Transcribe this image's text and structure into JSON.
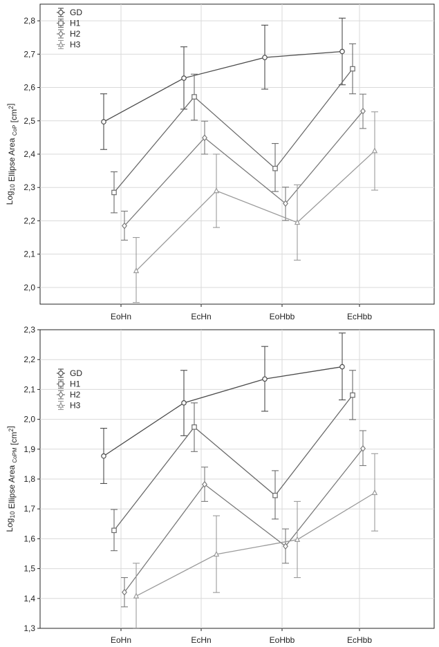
{
  "chart_data": [
    {
      "type": "line",
      "title": "",
      "ylabel": "Log10 Ellipse Area CoP [cm2]",
      "ylabel_parts": {
        "prefix": "Log",
        "log_sub": "10",
        "main": " Ellipse Area ",
        "sub": "CoP",
        "unit": " [cm",
        "unit_sup": "2",
        "close": "]"
      },
      "categories": [
        "EoHn",
        "EcHn",
        "EoHbb",
        "EcHbb"
      ],
      "ylim": [
        1.95,
        2.85
      ],
      "yticks": [
        2.0,
        2.1,
        2.2,
        2.3,
        2.4,
        2.5,
        2.6,
        2.7,
        2.8
      ],
      "ytick_labels": [
        "2,0",
        "2,1",
        "2,2",
        "2,3",
        "2,4",
        "2,5",
        "2,6",
        "2,7",
        "2,8"
      ],
      "grid": true,
      "legend_position": "top-left",
      "series": [
        {
          "name": "GD",
          "marker": "circle",
          "color": "#4a4a4a",
          "values": [
            2.497,
            2.628,
            2.69,
            2.708
          ],
          "lower": [
            2.414,
            2.535,
            2.595,
            2.608
          ],
          "upper": [
            2.581,
            2.722,
            2.787,
            2.808
          ]
        },
        {
          "name": "H1",
          "marker": "square",
          "color": "#6a6a6a",
          "values": [
            2.285,
            2.572,
            2.357,
            2.656
          ],
          "lower": [
            2.224,
            2.502,
            2.288,
            2.581
          ],
          "upper": [
            2.347,
            2.64,
            2.432,
            2.731
          ]
        },
        {
          "name": "H2",
          "marker": "diamond",
          "color": "#7a7a7a",
          "values": [
            2.185,
            2.449,
            2.252,
            2.529
          ],
          "lower": [
            2.142,
            2.4,
            2.201,
            2.477
          ],
          "upper": [
            2.229,
            2.499,
            2.301,
            2.58
          ]
        },
        {
          "name": "H3",
          "marker": "triangle",
          "color": "#9a9a9a",
          "values": [
            2.05,
            2.29,
            2.195,
            2.41
          ],
          "lower": [
            1.955,
            2.18,
            2.082,
            2.292
          ],
          "upper": [
            2.15,
            2.4,
            2.308,
            2.527
          ]
        }
      ]
    },
    {
      "type": "line",
      "title": "",
      "ylabel": "Log10 Ellipse Area CoPM [cm2]",
      "ylabel_parts": {
        "prefix": "Log",
        "log_sub": "10",
        "main": " Ellipse Area ",
        "sub": "CoPM",
        "unit": " [cm",
        "unit_sup": "2",
        "close": "]"
      },
      "categories": [
        "EoHn",
        "EcHn",
        "EoHbb",
        "EcHbb"
      ],
      "ylim": [
        1.3,
        2.3
      ],
      "yticks": [
        1.3,
        1.4,
        1.5,
        1.6,
        1.7,
        1.8,
        1.9,
        2.0,
        2.1,
        2.2,
        2.3
      ],
      "ytick_labels": [
        "1,3",
        "1,4",
        "1,5",
        "1,6",
        "1,7",
        "1,8",
        "1,9",
        "2,0",
        "2,1",
        "2,2",
        "2,3"
      ],
      "grid": true,
      "legend_position": "top-left",
      "series": [
        {
          "name": "GD",
          "marker": "circle",
          "color": "#4a4a4a",
          "values": [
            1.877,
            2.055,
            2.135,
            2.176
          ],
          "lower": [
            1.785,
            1.945,
            2.027,
            2.065
          ],
          "upper": [
            1.97,
            2.164,
            2.244,
            2.289
          ]
        },
        {
          "name": "H1",
          "marker": "square",
          "color": "#6a6a6a",
          "values": [
            1.628,
            1.974,
            1.745,
            2.081
          ],
          "lower": [
            1.56,
            1.892,
            1.666,
            1.999
          ],
          "upper": [
            1.698,
            2.055,
            1.828,
            2.164
          ]
        },
        {
          "name": "H2",
          "marker": "diamond",
          "color": "#7a7a7a",
          "values": [
            1.421,
            1.782,
            1.575,
            1.902
          ],
          "lower": [
            1.372,
            1.725,
            1.518,
            1.845
          ],
          "upper": [
            1.47,
            1.84,
            1.633,
            1.962
          ]
        },
        {
          "name": "H3",
          "marker": "triangle",
          "color": "#9a9a9a",
          "values": [
            1.408,
            1.548,
            1.597,
            1.754
          ],
          "lower": [
            1.301,
            1.42,
            1.47,
            1.626
          ],
          "upper": [
            1.518,
            1.677,
            1.725,
            1.885
          ]
        }
      ]
    }
  ]
}
